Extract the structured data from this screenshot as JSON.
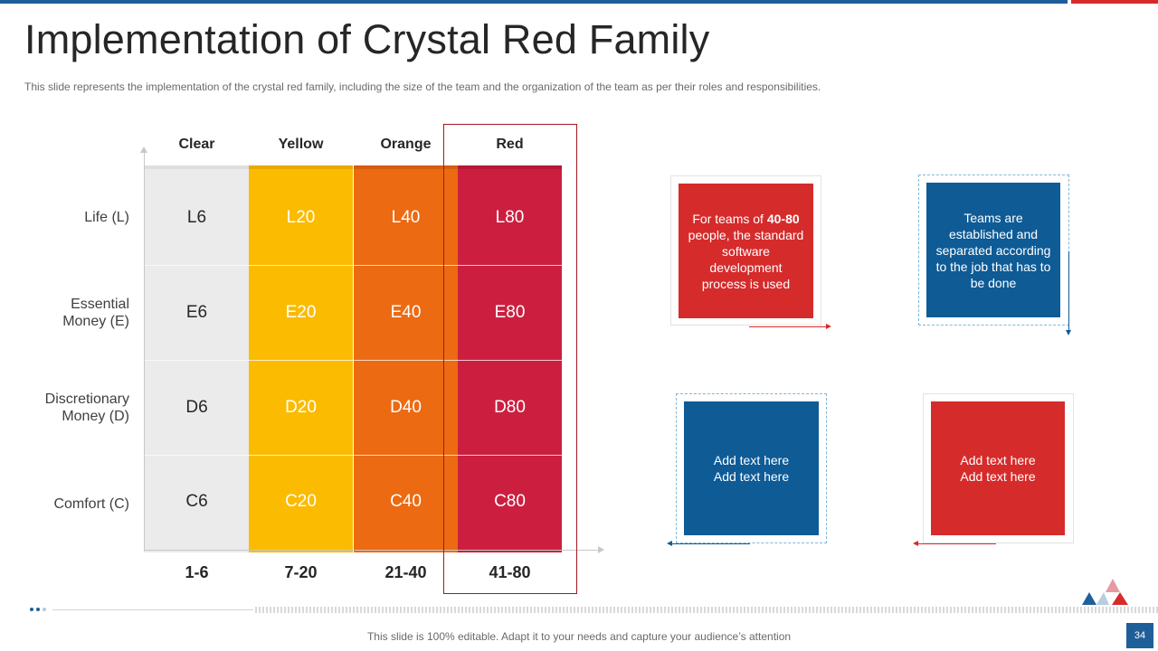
{
  "header": {
    "title": "Implementation of Crystal Red Family",
    "subtitle": "This slide represents the implementation of the crystal red family, including the size of the team and the organization of the team as per their roles and responsibilities."
  },
  "matrix": {
    "columns": [
      "Clear",
      "Yellow",
      "Orange",
      "Red"
    ],
    "rows": [
      "Life (L)",
      "Essential Money (E)",
      "Discretionary Money (D)",
      "Comfort (C)"
    ],
    "row_lines": [
      [
        "Life (L)"
      ],
      [
        "Essential",
        "Money (E)"
      ],
      [
        "Discretionary",
        "Money (D)"
      ],
      [
        "Comfort (C)"
      ]
    ],
    "cells": [
      [
        "L6",
        "L20",
        "L40",
        "L80"
      ],
      [
        "E6",
        "E20",
        "E40",
        "E80"
      ],
      [
        "D6",
        "D20",
        "D40",
        "D80"
      ],
      [
        "C6",
        "C20",
        "C40",
        "C80"
      ]
    ],
    "ranges": [
      "1-6",
      "7-20",
      "21-40",
      "41-80"
    ],
    "colors": {
      "clear": "#ebebeb",
      "yellow": "#fbbb00",
      "orange": "#ec6a12",
      "red": "#cc1f40"
    }
  },
  "boxes": {
    "box1": {
      "pre": "For teams of ",
      "bold": "40-80",
      "post": " people, the standard software development process is used"
    },
    "box2": "Teams are established and separated according to the job that has to be done",
    "box3": [
      "Add text here",
      "Add text here"
    ],
    "box4": [
      "Add text here",
      "Add text here"
    ]
  },
  "footer": {
    "text": "This slide is 100% editable. Adapt it to your needs and capture your audience’s attention",
    "page": "34"
  },
  "theme": {
    "accent_blue": "#1f5f99",
    "accent_red": "#d62b2b"
  }
}
